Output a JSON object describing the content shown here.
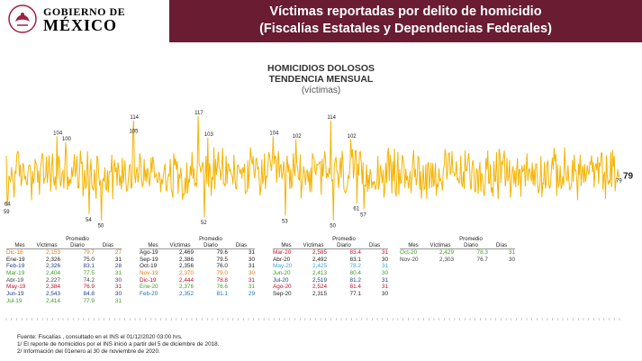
{
  "header": {
    "logo_line1": "GOBIERNO DE",
    "logo_line2": "MÉXICO",
    "title_line1": "Víctimas reportadas por delito de homicidio",
    "title_line2": "(Fiscalías Estatales y Dependencias Federales)",
    "band_color": "#691c32"
  },
  "chart_data": {
    "type": "line",
    "title_line1": "HOMICIDIOS DOLOSOS",
    "title_line2": "TENDENCIA MENSUAL",
    "subtitle": "(víctimas)",
    "line_color": "#f5b301",
    "end_value": "79",
    "ylim": [
      40,
      125
    ],
    "x_range": [
      "Dic-18",
      "Nov-20"
    ],
    "point_count": 704,
    "highlighted_points": [
      {
        "label": "117",
        "index": 220
      },
      {
        "label": "114",
        "index": 146
      },
      {
        "label": "114",
        "index": 372
      },
      {
        "label": "105",
        "index": 145
      },
      {
        "label": "104",
        "index": 58
      },
      {
        "label": "104",
        "index": 306
      },
      {
        "label": "103",
        "index": 231
      },
      {
        "label": "102",
        "index": 395
      },
      {
        "label": "102",
        "index": 332
      },
      {
        "label": "100",
        "index": 68
      },
      {
        "label": "59",
        "index": 1
      },
      {
        "label": "64",
        "index": 2
      },
      {
        "label": "54",
        "index": 95
      },
      {
        "label": "50",
        "index": 109
      },
      {
        "label": "52",
        "index": 227
      },
      {
        "label": "53",
        "index": 320
      },
      {
        "label": "50",
        "index": 375
      },
      {
        "label": "61",
        "index": 402
      },
      {
        "label": "57",
        "index": 410
      },
      {
        "label": "79",
        "index": 703
      }
    ]
  },
  "tables": [
    {
      "headers": [
        "Mes",
        "Víctimas",
        "Promedio Diario",
        "Días"
      ],
      "rows": [
        {
          "mes": "Dic-18",
          "victimas": "2,153",
          "promedio": "79.7",
          "dias": "27",
          "color": "#e67817"
        },
        {
          "mes": "Ene-19",
          "victimas": "2,326",
          "promedio": "75.0",
          "dias": "31",
          "color": "#222222"
        },
        {
          "mes": "Feb-19",
          "victimas": "2,326",
          "promedio": "83.1",
          "dias": "28",
          "color": "#1f3c88"
        },
        {
          "mes": "Mar-19",
          "victimas": "2,404",
          "promedio": "77.5",
          "dias": "31",
          "color": "#3f9b22"
        },
        {
          "mes": "Abr-19",
          "victimas": "2,227",
          "promedio": "74.2",
          "dias": "30",
          "color": "#444444"
        },
        {
          "mes": "May-19",
          "victimas": "2,384",
          "promedio": "76.9",
          "dias": "31",
          "color": "#c0102a"
        },
        {
          "mes": "Jun-19",
          "victimas": "2,543",
          "promedio": "84.8",
          "dias": "30",
          "color": "#1f3c88"
        },
        {
          "mes": "Jul-19",
          "victimas": "2,414",
          "promedio": "77.9",
          "dias": "31",
          "color": "#3f9b22"
        }
      ]
    },
    {
      "headers": [
        "Mes",
        "Víctimas",
        "Promedio Diario",
        "Días"
      ],
      "rows": [
        {
          "mes": "Ago-19",
          "victimas": "2,469",
          "promedio": "79.6",
          "dias": "31",
          "color": "#222222"
        },
        {
          "mes": "Sep-19",
          "victimas": "2,386",
          "promedio": "79.5",
          "dias": "30",
          "color": "#222222"
        },
        {
          "mes": "Oct-19",
          "victimas": "2,356",
          "promedio": "76.0",
          "dias": "31",
          "color": "#222222"
        },
        {
          "mes": "Nov-19",
          "victimas": "2,370",
          "promedio": "79.0",
          "dias": "30",
          "color": "#e67817"
        },
        {
          "mes": "Dic-19",
          "victimas": "2,444",
          "promedio": "78.8",
          "dias": "31",
          "color": "#c0102a"
        },
        {
          "mes": "Ene-20",
          "victimas": "2,376",
          "promedio": "76.6",
          "dias": "31",
          "color": "#3f9b22"
        },
        {
          "mes": "Feb-20",
          "victimas": "2,352",
          "promedio": "81.1",
          "dias": "29",
          "color": "#1f6fb4"
        }
      ]
    },
    {
      "headers": [
        "Mes",
        "Víctimas",
        "Promedio Diario",
        "Días"
      ],
      "rows": [
        {
          "mes": "Mar-20",
          "victimas": "2,585",
          "promedio": "83.4",
          "dias": "31",
          "color": "#c0102a"
        },
        {
          "mes": "Abr-20",
          "victimas": "2,492",
          "promedio": "83.1",
          "dias": "30",
          "color": "#222222"
        },
        {
          "mes": "May-20",
          "victimas": "2,425",
          "promedio": "78.2",
          "dias": "31",
          "color": "#3aa6dd"
        },
        {
          "mes": "Jun-20",
          "victimas": "2,413",
          "promedio": "80.4",
          "dias": "30",
          "color": "#3f9b22"
        },
        {
          "mes": "Jul-20",
          "victimas": "2,519",
          "promedio": "81.2",
          "dias": "31",
          "color": "#1f3c88"
        },
        {
          "mes": "Ago-20",
          "victimas": "2,524",
          "promedio": "81.4",
          "dias": "31",
          "color": "#c0102a"
        },
        {
          "mes": "Sep-20",
          "victimas": "2,315",
          "promedio": "77.1",
          "dias": "30",
          "color": "#222222"
        }
      ]
    },
    {
      "headers": [
        "Mes",
        "Víctimas",
        "Promedio Diario",
        "Días"
      ],
      "rows": [
        {
          "mes": "Oct-20",
          "victimas": "2,429",
          "promedio": "78.3",
          "dias": "31",
          "color": "#3f9b22"
        },
        {
          "mes": "Nov-20",
          "victimas": "2,303",
          "promedio": "76.7",
          "dias": "30",
          "color": "#444444"
        }
      ]
    }
  ],
  "footnotes": [
    "Fuente: Fiscalías , consultado en el INS el 01/12/2020 03:00 hrs.",
    "1/ El reporte de homicidios por el INS inició a partir del 5 de diciembre de 2018.",
    "2/ Información del 01enero al 30 de noviembre de 2020."
  ]
}
